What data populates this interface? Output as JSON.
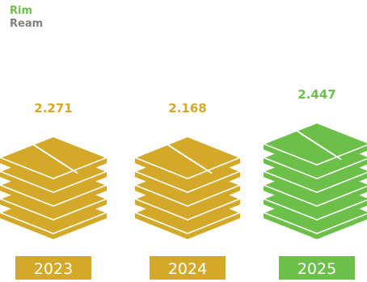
{
  "legend": {
    "rim": {
      "label": "Rim",
      "color": "#6cc04a"
    },
    "ream": {
      "label": "Ream",
      "color": "#808080"
    }
  },
  "colors": {
    "gold": "#d4a92a",
    "green": "#6cc04a",
    "sheet_lines": "#ffffff",
    "label_text": "#ffffff"
  },
  "chart_data": {
    "type": "pictogram",
    "categories": [
      "2023",
      "2024",
      "2025"
    ],
    "values": [
      2.271,
      2.168,
      2.447
    ],
    "value_labels": [
      "2.271",
      "2.168",
      "2.447"
    ],
    "highlighted": "2025"
  }
}
